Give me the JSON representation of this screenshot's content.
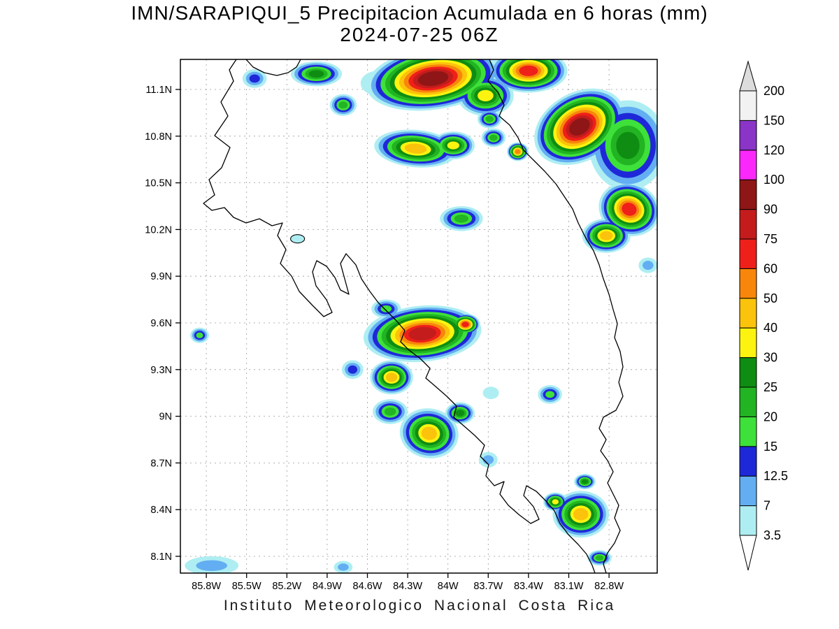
{
  "header": {
    "title_line1": "IMN/SARAPIQUI_5 Precipitacion Acumulada en 6 horas (mm)",
    "title_line2": "2024-07-25 06Z"
  },
  "footer": {
    "credit": "Instituto Meteorologico Nacional Costa Rica"
  },
  "map": {
    "lat_tick_labels": [
      "11.1N",
      "10.8N",
      "10.5N",
      "10.2N",
      "9.9N",
      "9.6N",
      "9.3N",
      "9N",
      "8.7N",
      "8.4N",
      "8.1N"
    ],
    "lon_tick_labels": [
      "85.8W",
      "85.5W",
      "85.2W",
      "84.9W",
      "84.6W",
      "84.3W",
      "84W",
      "83.7W",
      "83.4W",
      "83.1W",
      "82.8W"
    ],
    "outline_paths": [
      "M 338 85 L 328 100 L 334 116 L 316 146 L 326 166 L 307 194 L 329 211 L 317 240 L 299 257 L 307 279 L 291 291 L 303 301 L 321 297 L 334 311 L 352 319 L 371 313 L 389 323 L 404 319 L 397 337 L 409 357 L 401 377 L 417 395 L 428 417 L 447 437 L 463 453 L 475 447 L 467 429 L 452 409 L 447 389 L 453 373 L 467 381 L 479 397 L 487 415 L 499 421 L 493 399 L 487 377 L 495 363 L 509 379 L 517 399 L 529 417 L 541 433 L 555 447 L 567 459 L 579 473 L 573 489 L 585 501 L 601 513 L 615 527 L 609 541 L 623 553 L 639 567 L 653 581 L 649 597 L 663 609 L 679 623 L 693 637 L 687 653 L 699 665 L 695 681 L 707 695 L 721 689 L 715 707 L 727 723 L 743 737 L 759 749 L 771 743 L 763 725 L 749 709 L 753 695 L 767 703 L 781 717 L 793 731 L 801 749 L 813 765 L 827 779 L 839 793 L 847 809 L 851 820",
      "M 700 85 L 706 100 L 698 116 L 712 132 L 721 150 L 714 166 L 729 179 L 741 197 L 749 215 L 763 229 L 779 245 L 795 263 L 807 281 L 819 299 L 827 319 L 837 339 L 849 359 L 857 379 L 863 399 L 871 421 L 877 443 L 883 463 L 879 483 L 887 503 L 891 525 L 885 547 L 891 567 L 881 587 L 863 597 L 857 613 L 867 629 L 859 645 L 869 659 L 877 675 L 869 691 L 877 707 L 885 723 L 879 741 L 887 759 L 879 777 L 869 791 L 863 807 L 867 820",
      "M 352 85 L 362 96 L 378 104 L 396 108 L 412 104 L 424 96 L 430 85"
    ],
    "lake": {
      "lon_w": 85.12,
      "lat_n": 10.14,
      "rx_deg": 0.052,
      "ry_deg": 0.027
    }
  },
  "colorbar": {
    "labels": [
      "3.5",
      "7",
      "12.5",
      "15",
      "20",
      "25",
      "30",
      "40",
      "50",
      "60",
      "75",
      "90",
      "100",
      "120",
      "150",
      "200"
    ],
    "levels": [
      3.5,
      7,
      12.5,
      15,
      20,
      25,
      30,
      40,
      50,
      60,
      75,
      90,
      100,
      120,
      150,
      200
    ],
    "colors": [
      "#aeeef2",
      "#63aef2",
      "#1e28d8",
      "#3ee13a",
      "#22b422",
      "#0e8d12",
      "#fcf410",
      "#fbc30c",
      "#f8860b",
      "#ef2019",
      "#c41c1c",
      "#8f1616",
      "#fa28fa",
      "#8a35c8",
      "#f2f2f2",
      "#dcdcdc"
    ],
    "below_min_color": "#ffffff"
  },
  "chart_data": {
    "type": "heatmap",
    "title": "IMN/SARAPIQUI_5 Precipitacion Acumulada en 6 horas (mm)",
    "subtitle": "2024-07-25 06Z",
    "units": "mm",
    "xlabel": "",
    "ylabel": "",
    "legend_position": "right",
    "grid": true,
    "lon_ticks_w": [
      85.8,
      85.5,
      85.2,
      84.9,
      84.6,
      84.3,
      84.0,
      83.7,
      83.4,
      83.1,
      82.8
    ],
    "lat_ticks_n": [
      11.1,
      10.8,
      10.5,
      10.2,
      9.9,
      9.6,
      9.3,
      9.0,
      8.7,
      8.4,
      8.1
    ],
    "lon_range_w": [
      85.99,
      82.44
    ],
    "lat_range_n": [
      7.99,
      11.29
    ],
    "levels_mm": [
      3.5,
      7,
      12.5,
      15,
      20,
      25,
      30,
      40,
      50,
      60,
      75,
      90,
      100,
      120,
      150,
      200
    ],
    "cells": [
      {
        "lon_w": 84.11,
        "lat_n": 11.17,
        "rx_deg": 0.5,
        "ry_deg": 0.2,
        "peak_mm": 95,
        "rot_deg": -8
      },
      {
        "lon_w": 83.4,
        "lat_n": 11.22,
        "rx_deg": 0.29,
        "ry_deg": 0.14,
        "peak_mm": 65,
        "rot_deg": 0
      },
      {
        "lon_w": 83.72,
        "lat_n": 11.06,
        "rx_deg": 0.21,
        "ry_deg": 0.13,
        "peak_mm": 30,
        "rot_deg": 0
      },
      {
        "lon_w": 83.02,
        "lat_n": 10.86,
        "rx_deg": 0.36,
        "ry_deg": 0.22,
        "peak_mm": 95,
        "rot_deg": -30
      },
      {
        "lon_w": 82.66,
        "lat_n": 10.74,
        "rx_deg": 0.29,
        "ry_deg": 0.29,
        "peak_mm": 25,
        "rot_deg": 0
      },
      {
        "lon_w": 82.65,
        "lat_n": 10.33,
        "rx_deg": 0.23,
        "ry_deg": 0.17,
        "peak_mm": 70,
        "rot_deg": 20
      },
      {
        "lon_w": 82.82,
        "lat_n": 10.16,
        "rx_deg": 0.18,
        "ry_deg": 0.11,
        "peak_mm": 40,
        "rot_deg": 0
      },
      {
        "lon_w": 84.24,
        "lat_n": 10.72,
        "rx_deg": 0.31,
        "ry_deg": 0.12,
        "peak_mm": 40,
        "rot_deg": 5
      },
      {
        "lon_w": 83.96,
        "lat_n": 10.74,
        "rx_deg": 0.16,
        "ry_deg": 0.09,
        "peak_mm": 30,
        "rot_deg": 0
      },
      {
        "lon_w": 83.66,
        "lat_n": 10.79,
        "rx_deg": 0.09,
        "ry_deg": 0.06,
        "peak_mm": 20,
        "rot_deg": 0
      },
      {
        "lon_w": 84.98,
        "lat_n": 11.2,
        "rx_deg": 0.19,
        "ry_deg": 0.08,
        "peak_mm": 25,
        "rot_deg": 0
      },
      {
        "lon_w": 85.44,
        "lat_n": 11.17,
        "rx_deg": 0.09,
        "ry_deg": 0.06,
        "peak_mm": 12.5,
        "rot_deg": 0
      },
      {
        "lon_w": 84.78,
        "lat_n": 11.0,
        "rx_deg": 0.1,
        "ry_deg": 0.07,
        "peak_mm": 20,
        "rot_deg": 0
      },
      {
        "lon_w": 83.9,
        "lat_n": 10.27,
        "rx_deg": 0.16,
        "ry_deg": 0.08,
        "peak_mm": 20,
        "rot_deg": 0
      },
      {
        "lon_w": 82.51,
        "lat_n": 9.97,
        "rx_deg": 0.07,
        "ry_deg": 0.05,
        "peak_mm": 7,
        "rot_deg": 0
      },
      {
        "lon_w": 84.19,
        "lat_n": 9.53,
        "rx_deg": 0.44,
        "ry_deg": 0.18,
        "peak_mm": 80,
        "rot_deg": -5
      },
      {
        "lon_w": 83.87,
        "lat_n": 9.59,
        "rx_deg": 0.11,
        "ry_deg": 0.07,
        "peak_mm": 65,
        "rot_deg": 0
      },
      {
        "lon_w": 84.46,
        "lat_n": 9.69,
        "rx_deg": 0.11,
        "ry_deg": 0.06,
        "peak_mm": 15,
        "rot_deg": 0
      },
      {
        "lon_w": 84.42,
        "lat_n": 9.25,
        "rx_deg": 0.16,
        "ry_deg": 0.11,
        "peak_mm": 40,
        "rot_deg": 0
      },
      {
        "lon_w": 84.71,
        "lat_n": 9.3,
        "rx_deg": 0.08,
        "ry_deg": 0.06,
        "peak_mm": 12.5,
        "rot_deg": 0
      },
      {
        "lon_w": 84.14,
        "lat_n": 8.89,
        "rx_deg": 0.22,
        "ry_deg": 0.16,
        "peak_mm": 40,
        "rot_deg": 10
      },
      {
        "lon_w": 83.91,
        "lat_n": 9.02,
        "rx_deg": 0.11,
        "ry_deg": 0.07,
        "peak_mm": 25,
        "rot_deg": 0
      },
      {
        "lon_w": 84.43,
        "lat_n": 9.03,
        "rx_deg": 0.13,
        "ry_deg": 0.08,
        "peak_mm": 20,
        "rot_deg": 0
      },
      {
        "lon_w": 85.85,
        "lat_n": 9.52,
        "rx_deg": 0.07,
        "ry_deg": 0.05,
        "peak_mm": 15,
        "rot_deg": 0
      },
      {
        "lon_w": 83.24,
        "lat_n": 9.14,
        "rx_deg": 0.09,
        "ry_deg": 0.06,
        "peak_mm": 15,
        "rot_deg": 0
      },
      {
        "lon_w": 83.7,
        "lat_n": 8.72,
        "rx_deg": 0.07,
        "ry_deg": 0.05,
        "peak_mm": 7,
        "rot_deg": 0
      },
      {
        "lon_w": 83.01,
        "lat_n": 8.37,
        "rx_deg": 0.21,
        "ry_deg": 0.15,
        "peak_mm": 40,
        "rot_deg": 0
      },
      {
        "lon_w": 83.2,
        "lat_n": 8.45,
        "rx_deg": 0.09,
        "ry_deg": 0.06,
        "peak_mm": 30,
        "rot_deg": 0
      },
      {
        "lon_w": 82.98,
        "lat_n": 8.58,
        "rx_deg": 0.08,
        "ry_deg": 0.05,
        "peak_mm": 25,
        "rot_deg": 0
      },
      {
        "lon_w": 85.76,
        "lat_n": 8.04,
        "rx_deg": 0.2,
        "ry_deg": 0.06,
        "peak_mm": 7,
        "rot_deg": 0
      },
      {
        "lon_w": 84.78,
        "lat_n": 8.03,
        "rx_deg": 0.07,
        "ry_deg": 0.04,
        "peak_mm": 7,
        "rot_deg": 0
      },
      {
        "lon_w": 82.87,
        "lat_n": 8.09,
        "rx_deg": 0.09,
        "ry_deg": 0.05,
        "peak_mm": 20,
        "rot_deg": 0
      },
      {
        "lon_w": 83.48,
        "lat_n": 10.7,
        "rx_deg": 0.08,
        "ry_deg": 0.06,
        "peak_mm": 50,
        "rot_deg": 0
      },
      {
        "lon_w": 83.69,
        "lat_n": 10.91,
        "rx_deg": 0.09,
        "ry_deg": 0.06,
        "peak_mm": 20,
        "rot_deg": 0
      },
      {
        "lon_w": 83.68,
        "lat_n": 9.15,
        "rx_deg": 0.06,
        "ry_deg": 0.04,
        "peak_mm": 3.5,
        "rot_deg": 0
      },
      {
        "lon_w": 84.52,
        "lat_n": 11.14,
        "rx_deg": 0.13,
        "ry_deg": 0.08,
        "peak_mm": 3.5,
        "rot_deg": 0
      }
    ]
  }
}
